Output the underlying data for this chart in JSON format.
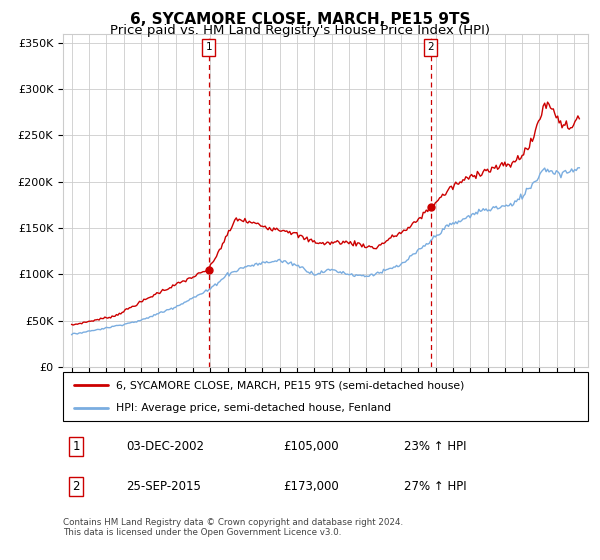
{
  "title": "6, SYCAMORE CLOSE, MARCH, PE15 9TS",
  "subtitle": "Price paid vs. HM Land Registry's House Price Index (HPI)",
  "ylabel_ticks": [
    "£0",
    "£50K",
    "£100K",
    "£150K",
    "£200K",
    "£250K",
    "£300K",
    "£350K"
  ],
  "ytick_values": [
    0,
    50000,
    100000,
    150000,
    200000,
    250000,
    300000,
    350000
  ],
  "ylim": [
    0,
    360000
  ],
  "sale1_date": 2002.92,
  "sale1_price": 105000,
  "sale2_date": 2015.73,
  "sale2_price": 173000,
  "legend_line1": "6, SYCAMORE CLOSE, MARCH, PE15 9TS (semi-detached house)",
  "legend_line2": "HPI: Average price, semi-detached house, Fenland",
  "table_row1": [
    "1",
    "03-DEC-2002",
    "£105,000",
    "23% ↑ HPI"
  ],
  "table_row2": [
    "2",
    "25-SEP-2015",
    "£173,000",
    "27% ↑ HPI"
  ],
  "footer": "Contains HM Land Registry data © Crown copyright and database right 2024.\nThis data is licensed under the Open Government Licence v3.0.",
  "line_color_red": "#cc0000",
  "line_color_blue": "#7aade0",
  "vline_color": "#cc0000",
  "grid_color": "#cccccc",
  "background_color": "#ffffff",
  "title_fontsize": 11,
  "subtitle_fontsize": 9.5
}
